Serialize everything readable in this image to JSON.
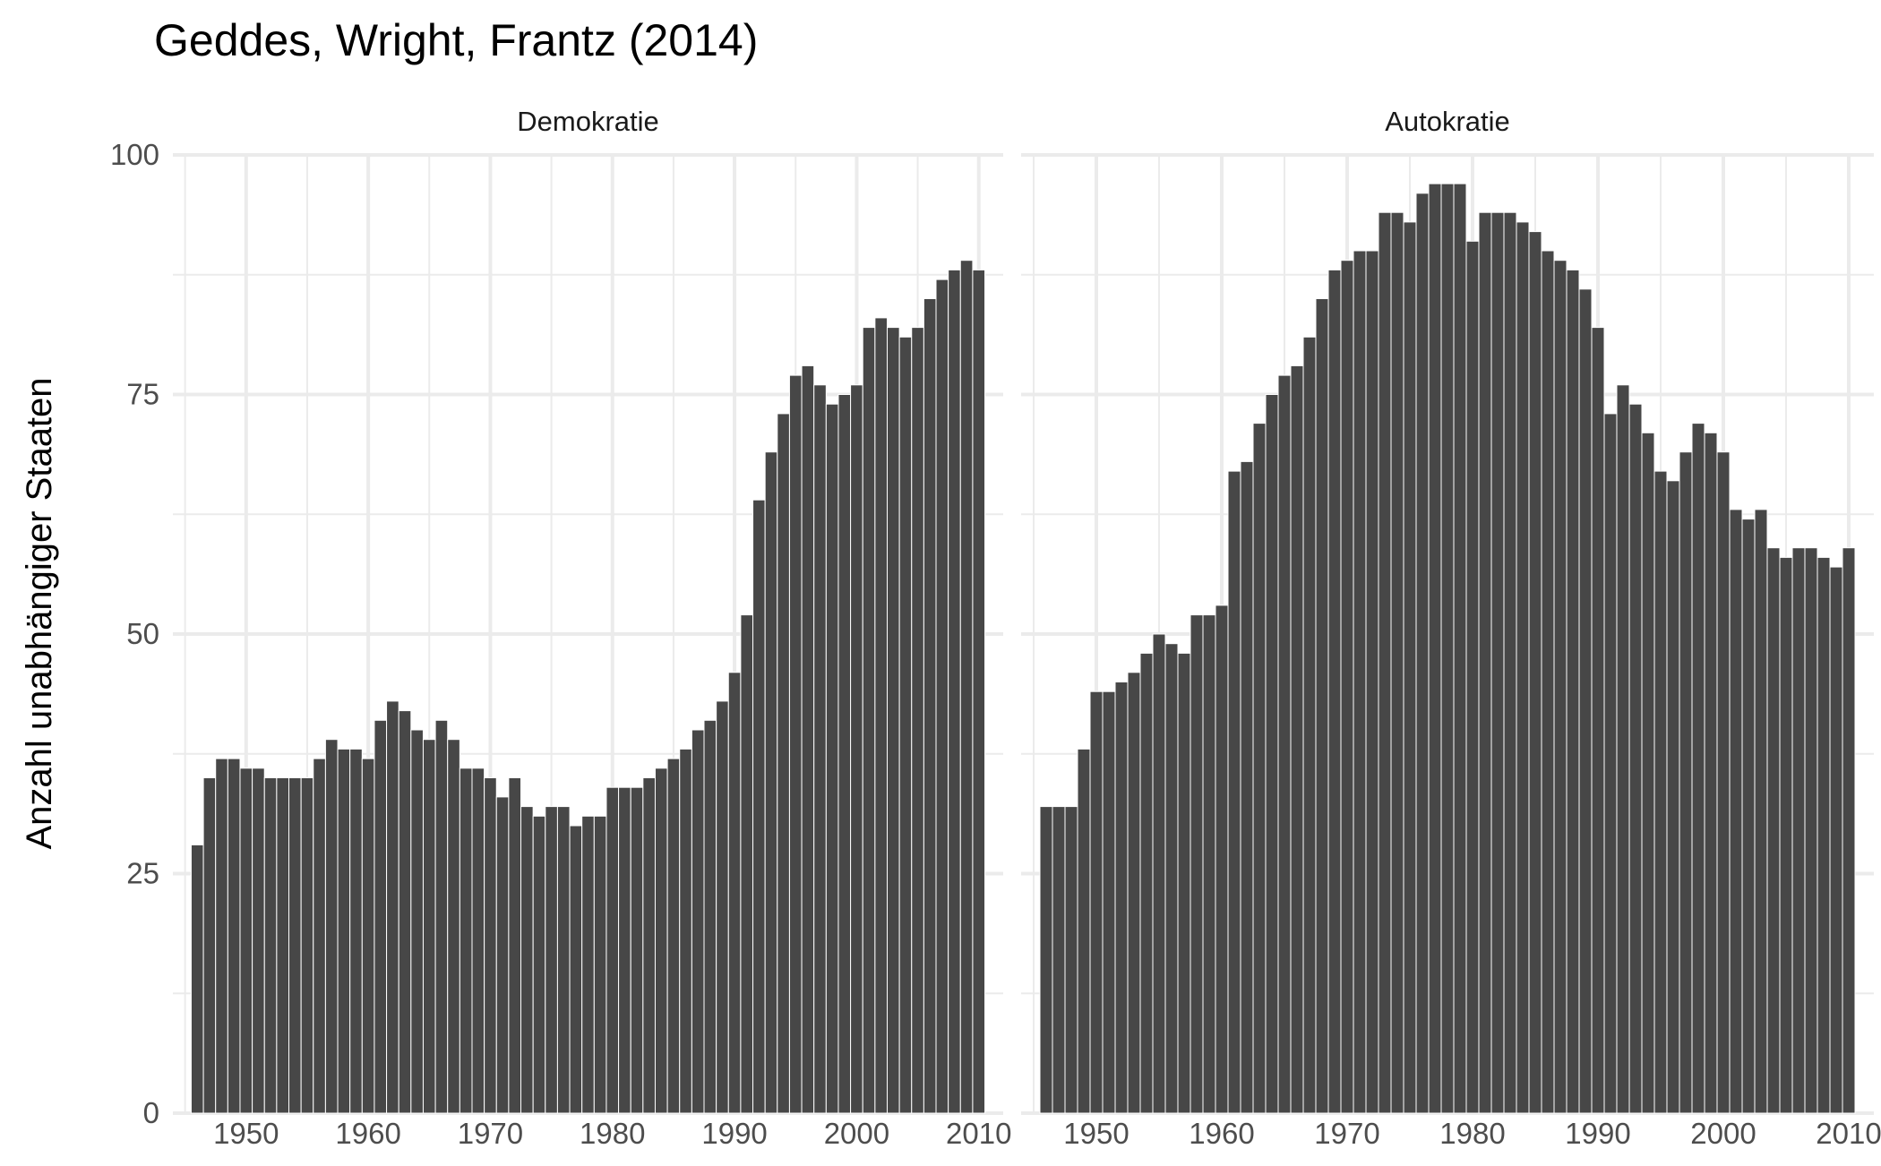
{
  "chart_data": {
    "type": "bar",
    "title": "Geddes, Wright, Frantz (2014)",
    "ylabel": "Anzahl unabhängiger Staaten",
    "xlabel": "",
    "ylim": [
      0,
      100
    ],
    "y_ticks": [
      0,
      25,
      50,
      75,
      100
    ],
    "x_ticks": [
      1950,
      1960,
      1970,
      1980,
      1990,
      2000,
      2010
    ],
    "xlim": [
      1944,
      2012
    ],
    "grid": true,
    "colors": {
      "bar_fill": "#474747",
      "bar_stroke": "#ffffff",
      "grid": "#ebebeb",
      "text": "#4d4d4d",
      "title": "#000000"
    },
    "panels": [
      {
        "name": "Demokratie",
        "x_start": 1946,
        "values": [
          28,
          35,
          37,
          37,
          36,
          36,
          35,
          35,
          35,
          35,
          37,
          39,
          38,
          38,
          37,
          41,
          43,
          42,
          40,
          39,
          41,
          39,
          36,
          36,
          35,
          33,
          35,
          32,
          31,
          32,
          32,
          30,
          31,
          31,
          34,
          34,
          34,
          35,
          36,
          37,
          38,
          40,
          41,
          43,
          46,
          52,
          64,
          69,
          73,
          77,
          78,
          76,
          74,
          75,
          76,
          82,
          83,
          82,
          81,
          82,
          85,
          87,
          88,
          89,
          88
        ]
      },
      {
        "name": "Autokratie",
        "x_start": 1946,
        "values": [
          32,
          32,
          32,
          38,
          44,
          44,
          45,
          46,
          48,
          50,
          49,
          48,
          52,
          52,
          53,
          67,
          68,
          72,
          75,
          77,
          78,
          81,
          85,
          88,
          89,
          90,
          90,
          94,
          94,
          93,
          96,
          97,
          97,
          97,
          91,
          94,
          94,
          94,
          93,
          92,
          90,
          89,
          88,
          86,
          82,
          73,
          76,
          74,
          71,
          67,
          66,
          69,
          72,
          71,
          69,
          63,
          62,
          63,
          59,
          58,
          59,
          59,
          58,
          57,
          59
        ]
      }
    ]
  }
}
